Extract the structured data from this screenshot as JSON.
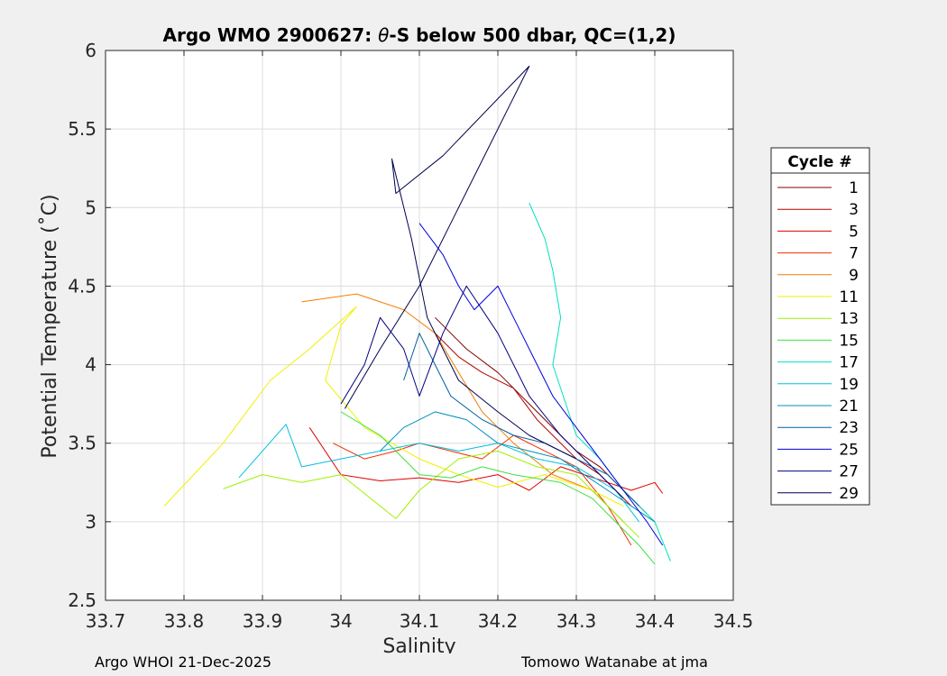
{
  "chart_data": {
    "type": "line",
    "title_prefix": "Argo WMO 2900627: ",
    "title_theta": "θ",
    "title_suffix": "-S below 500 dbar,  QC=(1,2)",
    "xlabel": "Salinity",
    "ylabel": "Potential Temperature (˚C)",
    "xlim": [
      33.7,
      34.5
    ],
    "ylim": [
      2.5,
      6
    ],
    "xticks": [
      33.7,
      33.8,
      33.9,
      34,
      34.1,
      34.2,
      34.3,
      34.4,
      34.5
    ],
    "xtick_labels": [
      "33.7",
      "33.8",
      "33.9",
      "34",
      "34.1",
      "34.2",
      "34.3",
      "34.4",
      "34.5"
    ],
    "yticks": [
      2.5,
      3,
      3.5,
      4,
      4.5,
      5,
      5.5,
      6
    ],
    "ytick_labels": [
      "2.5",
      "3",
      "3.5",
      "4",
      "4.5",
      "5",
      "5.5",
      "6"
    ],
    "grid": true,
    "legend_title": "Cycle #",
    "legend_position": "right",
    "series": [
      {
        "name": "1",
        "color": "#800000",
        "x": [
          34.12,
          34.16,
          34.2,
          34.22,
          34.25,
          34.28,
          34.3,
          34.33,
          34.35,
          34.37,
          34.39
        ],
        "y": [
          4.3,
          4.1,
          3.95,
          3.85,
          3.7,
          3.55,
          3.45,
          3.35,
          3.25,
          3.15,
          3.05
        ]
      },
      {
        "name": "3",
        "color": "#b50000",
        "x": [
          34.12,
          34.15,
          34.18,
          34.22,
          34.25,
          34.27,
          34.3,
          34.33,
          34.35,
          34.37
        ],
        "y": [
          4.2,
          4.05,
          3.95,
          3.85,
          3.65,
          3.55,
          3.4,
          3.3,
          3.2,
          3.1
        ]
      },
      {
        "name": "5",
        "color": "#e00000",
        "x": [
          33.96,
          34.0,
          34.05,
          34.1,
          34.15,
          34.2,
          34.24,
          34.28,
          34.31,
          34.34,
          34.37,
          34.4,
          34.41
        ],
        "y": [
          3.6,
          3.3,
          3.26,
          3.28,
          3.25,
          3.3,
          3.2,
          3.35,
          3.3,
          3.25,
          3.2,
          3.25,
          3.18
        ]
      },
      {
        "name": "7",
        "color": "#f03000",
        "x": [
          33.99,
          34.03,
          34.07,
          34.1,
          34.14,
          34.18,
          34.22,
          34.26,
          34.3,
          34.34,
          34.37
        ],
        "y": [
          3.5,
          3.4,
          3.45,
          3.5,
          3.45,
          3.4,
          3.55,
          3.45,
          3.35,
          3.1,
          2.85
        ]
      },
      {
        "name": "9",
        "color": "#f08000",
        "x": [
          33.95,
          34.02,
          34.08,
          34.12,
          34.18,
          34.22,
          34.27,
          34.32,
          34.36
        ],
        "y": [
          4.4,
          4.45,
          4.35,
          4.2,
          3.7,
          3.5,
          3.3,
          3.2,
          3.0
        ]
      },
      {
        "name": "11",
        "color": "#f0f000",
        "x": [
          33.775,
          33.85,
          33.91,
          33.96,
          34.02,
          34.0,
          33.98,
          34.03,
          34.1,
          34.15,
          34.2,
          34.26,
          34.32,
          34.36
        ],
        "y": [
          3.1,
          3.5,
          3.9,
          4.1,
          4.37,
          4.25,
          3.9,
          3.6,
          3.4,
          3.3,
          3.22,
          3.3,
          3.2,
          3.1
        ]
      },
      {
        "name": "13",
        "color": "#a0f000",
        "x": [
          33.85,
          33.9,
          33.95,
          34.0,
          34.07,
          34.1,
          34.15,
          34.2,
          34.25,
          34.3,
          34.34,
          34.38
        ],
        "y": [
          3.21,
          3.3,
          3.25,
          3.3,
          3.02,
          3.2,
          3.4,
          3.45,
          3.35,
          3.3,
          3.1,
          2.9
        ]
      },
      {
        "name": "15",
        "color": "#40e040",
        "x": [
          34.0,
          34.05,
          34.1,
          34.14,
          34.18,
          34.22,
          34.28,
          34.32,
          34.35,
          34.38,
          34.4
        ],
        "y": [
          3.7,
          3.55,
          3.3,
          3.28,
          3.35,
          3.3,
          3.25,
          3.15,
          3.0,
          2.85,
          2.73
        ]
      },
      {
        "name": "17",
        "color": "#00e0c0",
        "x": [
          34.24,
          34.26,
          34.27,
          34.28,
          34.27,
          34.29,
          34.3,
          34.33,
          34.36,
          34.4,
          34.42
        ],
        "y": [
          5.03,
          4.8,
          4.6,
          4.3,
          4.0,
          3.7,
          3.55,
          3.4,
          3.2,
          3.0,
          2.75
        ]
      },
      {
        "name": "19",
        "color": "#00c0e0",
        "x": [
          33.87,
          33.9,
          33.93,
          33.95,
          34.0,
          34.05,
          34.1,
          34.15,
          34.2,
          34.25,
          34.3,
          34.35,
          34.38
        ],
        "y": [
          3.28,
          3.45,
          3.62,
          3.35,
          3.4,
          3.45,
          3.5,
          3.45,
          3.5,
          3.4,
          3.35,
          3.2,
          3.0
        ]
      },
      {
        "name": "21",
        "color": "#0090c0",
        "x": [
          34.05,
          34.08,
          34.12,
          34.16,
          34.2,
          34.24,
          34.28,
          34.31,
          34.34,
          34.37,
          34.4
        ],
        "y": [
          3.45,
          3.6,
          3.7,
          3.65,
          3.5,
          3.45,
          3.4,
          3.3,
          3.2,
          3.1,
          3.0
        ]
      },
      {
        "name": "23",
        "color": "#0060a0",
        "x": [
          34.08,
          34.1,
          34.12,
          34.14,
          34.18,
          34.22,
          34.26,
          34.3,
          34.34,
          34.38
        ],
        "y": [
          3.9,
          4.2,
          4.0,
          3.8,
          3.65,
          3.55,
          3.5,
          3.4,
          3.3,
          3.1
        ]
      },
      {
        "name": "25",
        "color": "#0000e0",
        "x": [
          34.1,
          34.13,
          34.15,
          34.17,
          34.2,
          34.22,
          34.25,
          34.27,
          34.3,
          34.33,
          34.36,
          34.39,
          34.41
        ],
        "y": [
          4.9,
          4.7,
          4.5,
          4.35,
          4.5,
          4.3,
          4.0,
          3.8,
          3.6,
          3.4,
          3.2,
          3.0,
          2.85
        ]
      },
      {
        "name": "27",
        "color": "#000080",
        "x": [
          34.0,
          34.03,
          34.05,
          34.08,
          34.1,
          34.13,
          34.16,
          34.2,
          34.24,
          34.28,
          34.32,
          34.36
        ],
        "y": [
          3.75,
          4.0,
          4.3,
          4.1,
          3.8,
          4.2,
          4.5,
          4.2,
          3.8,
          3.55,
          3.35,
          3.15
        ]
      },
      {
        "name": "29",
        "color": "#000050",
        "x": [
          34.005,
          34.05,
          34.1,
          34.14,
          34.18,
          34.21,
          34.24,
          34.13,
          34.07,
          34.065,
          34.09,
          34.11,
          34.15,
          34.2,
          34.24,
          34.3
        ],
        "y": [
          3.72,
          4.1,
          4.5,
          4.9,
          5.3,
          5.6,
          5.9,
          5.33,
          5.09,
          5.31,
          4.8,
          4.3,
          3.9,
          3.7,
          3.55,
          3.4
        ]
      }
    ]
  },
  "footer": {
    "left": "Argo WHOI 21-Dec-2025",
    "right": "Tomowo Watanabe at jma"
  }
}
